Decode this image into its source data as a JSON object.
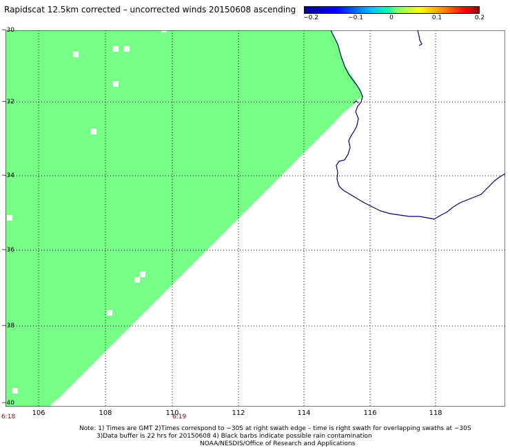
{
  "title": "Rapidscat 12.5km corrected – uncorrected winds 20150608 ascending",
  "colorbar": {
    "ticks": [
      "−0.2",
      "−0.1",
      "0",
      "0.1",
      "0.2"
    ]
  },
  "map": {
    "lat_labels": [
      "−30",
      "−32",
      "−34",
      "−36",
      "−38",
      "−40"
    ],
    "lon_labels": [
      "106",
      "108",
      "110",
      "112",
      "114",
      "116",
      "118"
    ],
    "times": [
      "6:18",
      "6:19"
    ],
    "colors": {
      "swath": "#77ff88",
      "coast": "#000066",
      "grid": "#000000",
      "background": "#ffffff"
    }
  },
  "notes": {
    "line1": "Note: 1) Times are GMT 2)Times correspond to −30S at right swath edge – time is right swath for overlapping swaths at −30S",
    "line2": "3)Data buffer is 22 hrs for 20150608 4) Black barbs indicate possible rain contamination",
    "line3": "NOAA/NESDIS/Office of Research and Applications"
  }
}
